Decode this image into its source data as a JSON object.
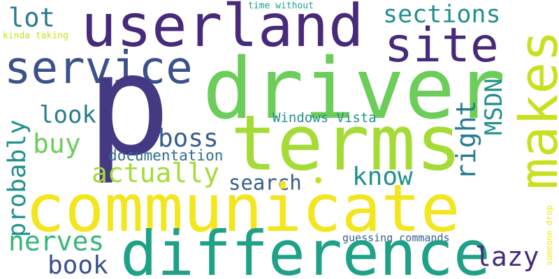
{
  "colors": {
    "background": "#ffffff",
    "dark_purple": "#472a7a",
    "purple": "#443a83",
    "blue": "#3b518b",
    "slate": "#355f8d",
    "steel": "#2f6c8e",
    "teal_blue": "#287c8e",
    "teal": "#21908d",
    "sea": "#1fa187",
    "green": "#35b779",
    "light_green": "#6ccd5a",
    "lime": "#a5db36",
    "yellow_green": "#c9e020",
    "yellow": "#f3e51e"
  },
  "words": {
    "p": "p",
    "userland": "userland",
    "driver": "driver",
    "terms": "terms",
    "communicate": "communicate",
    "difference": "difference",
    "service": "service",
    "site": "site",
    "makes": "makes",
    "sections": "sections",
    "lot": "lot",
    "probably": "probably",
    "look": "look",
    "buy": "buy",
    "boss": "boss",
    "actually": "actually",
    "documentation": "documentation",
    "search": "search",
    "know": "know",
    "right": "right",
    "msdn": "MSDN",
    "windows_vista": "Windows Vista",
    "nerves": "nerves",
    "book": "book",
    "lazy": "lazy",
    "guessing_commands": "guessing commands",
    "time_without": "time without",
    "kinda_taking": "kinda taking",
    "someone_drop": "someone drop"
  }
}
